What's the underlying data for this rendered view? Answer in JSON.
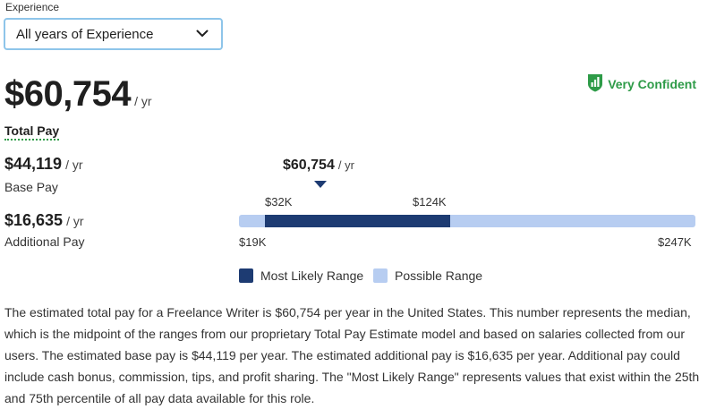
{
  "experience": {
    "label": "Experience",
    "selected": "All years of Experience"
  },
  "confidence": {
    "text": "Very Confident",
    "color": "#2e9b48",
    "icon": "shield-chart-icon"
  },
  "total": {
    "amount": "$60,754",
    "unit": "/ yr",
    "label": "Total Pay"
  },
  "base": {
    "amount": "$44,119",
    "unit": "/ yr",
    "label": "Base Pay"
  },
  "additional": {
    "amount": "$16,635",
    "unit": "/ yr",
    "label": "Additional Pay"
  },
  "range": {
    "median_label": "$60,754",
    "median_unit": "/ yr",
    "likely_low_label": "$32K",
    "likely_high_label": "$124K",
    "possible_low_label": "$19K",
    "possible_high_label": "$247K",
    "median": 60754,
    "likely_low": 32000,
    "likely_high": 124000,
    "possible_low": 19000,
    "possible_high": 247000,
    "likely_color": "#1d3b72",
    "possible_color": "#b7cdf1"
  },
  "legend": {
    "likely": "Most Likely Range",
    "possible": "Possible Range"
  },
  "description": "The estimated total pay for a Freelance Writer is $60,754 per year in the United States. This number represents the median, which is the midpoint of the ranges from our proprietary Total Pay Estimate model and based on salaries collected from our users. The estimated base pay is $44,119 per year. The estimated additional pay is $16,635 per year. Additional pay could include cash bonus, commission, tips, and profit sharing. The \"Most Likely Range\" represents values that exist within the 25th and 75th percentile of all pay data available for this role."
}
